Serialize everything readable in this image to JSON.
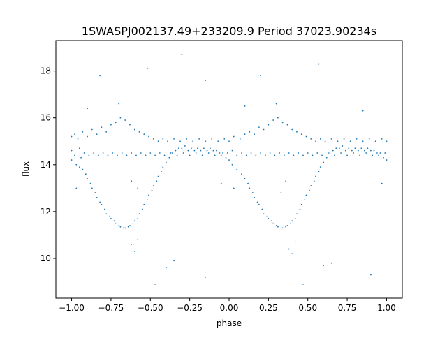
{
  "chart_data": {
    "type": "scatter",
    "title": "1SWASPJ002137.49+233209.9 Period 37023.90234s",
    "xlabel": "phase",
    "ylabel": "flux",
    "xlim": [
      -1.1,
      1.1
    ],
    "ylim": [
      8.3,
      19.3
    ],
    "x_ticks": [
      {
        "value": -1.0,
        "label": "−1.00"
      },
      {
        "value": -0.75,
        "label": "−0.75"
      },
      {
        "value": -0.5,
        "label": "−0.50"
      },
      {
        "value": -0.25,
        "label": "−0.25"
      },
      {
        "value": 0.0,
        "label": "0.00"
      },
      {
        "value": 0.25,
        "label": "0.25"
      },
      {
        "value": 0.5,
        "label": "0.50"
      },
      {
        "value": 0.75,
        "label": "0.75"
      },
      {
        "value": 1.0,
        "label": "1.00"
      }
    ],
    "y_ticks": [
      {
        "value": 10,
        "label": "10"
      },
      {
        "value": 12,
        "label": "12"
      },
      {
        "value": 14,
        "label": "14"
      },
      {
        "value": 16,
        "label": "16"
      },
      {
        "value": 18,
        "label": "18"
      }
    ],
    "grid": false,
    "legend": "none",
    "marker_color": "#1f77b4",
    "series": [
      {
        "description_values": "folded light curve, phase -1 to 1",
        "points": [
          [
            -1.0,
            15.2
          ],
          [
            -1.0,
            14.6
          ],
          [
            -1.0,
            14.2
          ],
          [
            -0.98,
            15.3
          ],
          [
            -0.98,
            14.4
          ],
          [
            -0.97,
            14.0
          ],
          [
            -0.96,
            15.1
          ],
          [
            -0.95,
            14.7
          ],
          [
            -0.95,
            13.9
          ],
          [
            -0.94,
            14.3
          ],
          [
            -0.93,
            15.4
          ],
          [
            -0.93,
            13.8
          ],
          [
            -0.92,
            14.5
          ],
          [
            -0.91,
            13.6
          ],
          [
            -0.9,
            15.2
          ],
          [
            -0.9,
            13.4
          ],
          [
            -0.89,
            14.4
          ],
          [
            -0.88,
            13.2
          ],
          [
            -0.87,
            15.5
          ],
          [
            -0.87,
            13.0
          ],
          [
            -0.86,
            14.5
          ],
          [
            -0.85,
            12.8
          ],
          [
            -0.84,
            15.3
          ],
          [
            -0.84,
            12.6
          ],
          [
            -0.83,
            14.4
          ],
          [
            -0.82,
            12.4
          ],
          [
            -0.81,
            15.6
          ],
          [
            -0.81,
            12.3
          ],
          [
            -0.8,
            14.5
          ],
          [
            -0.79,
            12.1
          ],
          [
            -0.78,
            15.4
          ],
          [
            -0.78,
            11.9
          ],
          [
            -0.77,
            14.4
          ],
          [
            -0.76,
            11.8
          ],
          [
            -0.75,
            15.7
          ],
          [
            -0.75,
            11.7
          ],
          [
            -0.74,
            14.5
          ],
          [
            -0.73,
            11.6
          ],
          [
            -0.72,
            15.8
          ],
          [
            -0.72,
            11.5
          ],
          [
            -0.71,
            14.4
          ],
          [
            -0.7,
            11.4
          ],
          [
            -0.69,
            16.0
          ],
          [
            -0.69,
            11.35
          ],
          [
            -0.68,
            14.5
          ],
          [
            -0.67,
            11.3
          ],
          [
            -0.66,
            15.9
          ],
          [
            -0.66,
            11.3
          ],
          [
            -0.65,
            14.4
          ],
          [
            -0.64,
            11.35
          ],
          [
            -0.63,
            15.7
          ],
          [
            -0.63,
            11.4
          ],
          [
            -0.62,
            14.5
          ],
          [
            -0.61,
            11.5
          ],
          [
            -0.6,
            15.5
          ],
          [
            -0.6,
            11.6
          ],
          [
            -0.59,
            14.4
          ],
          [
            -0.58,
            11.7
          ],
          [
            -0.57,
            15.4
          ],
          [
            -0.57,
            11.9
          ],
          [
            -0.56,
            14.5
          ],
          [
            -0.55,
            12.1
          ],
          [
            -0.54,
            15.3
          ],
          [
            -0.54,
            12.3
          ],
          [
            -0.53,
            14.4
          ],
          [
            -0.52,
            12.5
          ],
          [
            -0.51,
            15.2
          ],
          [
            -0.51,
            12.7
          ],
          [
            -0.5,
            14.5
          ],
          [
            -0.49,
            12.9
          ],
          [
            -0.48,
            15.1
          ],
          [
            -0.48,
            13.1
          ],
          [
            -0.47,
            14.4
          ],
          [
            -0.46,
            13.3
          ],
          [
            -0.45,
            15.0
          ],
          [
            -0.45,
            13.5
          ],
          [
            -0.44,
            14.5
          ],
          [
            -0.43,
            13.7
          ],
          [
            -0.42,
            15.1
          ],
          [
            -0.42,
            13.9
          ],
          [
            -0.41,
            14.4
          ],
          [
            -0.4,
            14.1
          ],
          [
            -0.39,
            15.0
          ],
          [
            -0.38,
            14.3
          ],
          [
            -0.37,
            14.5
          ],
          [
            -0.36,
            14.5
          ],
          [
            -0.35,
            15.1
          ],
          [
            -0.34,
            14.6
          ],
          [
            -0.33,
            14.4
          ],
          [
            -0.32,
            14.7
          ],
          [
            -0.31,
            15.0
          ],
          [
            -0.3,
            14.7
          ],
          [
            -0.29,
            14.5
          ],
          [
            -0.28,
            14.8
          ],
          [
            -0.27,
            15.1
          ],
          [
            -0.26,
            14.6
          ],
          [
            -0.25,
            14.4
          ],
          [
            -0.24,
            14.7
          ],
          [
            -0.23,
            15.0
          ],
          [
            -0.22,
            14.6
          ],
          [
            -0.21,
            14.5
          ],
          [
            -0.2,
            14.7
          ],
          [
            -0.19,
            15.1
          ],
          [
            -0.18,
            14.6
          ],
          [
            -0.17,
            14.4
          ],
          [
            -0.16,
            14.7
          ],
          [
            -0.15,
            15.0
          ],
          [
            -0.14,
            14.6
          ],
          [
            -0.13,
            14.5
          ],
          [
            -0.12,
            14.7
          ],
          [
            -0.11,
            15.1
          ],
          [
            -0.1,
            14.6
          ],
          [
            -0.09,
            14.4
          ],
          [
            -0.08,
            14.6
          ],
          [
            -0.07,
            15.0
          ],
          [
            -0.06,
            14.5
          ],
          [
            -0.05,
            14.4
          ],
          [
            -0.04,
            14.5
          ],
          [
            -0.03,
            15.1
          ],
          [
            -0.02,
            14.3
          ],
          [
            -0.01,
            14.5
          ],
          [
            0.0,
            14.2
          ],
          [
            0.0,
            15.0
          ],
          [
            0.02,
            14.6
          ],
          [
            0.02,
            14.0
          ],
          [
            0.03,
            15.2
          ],
          [
            0.05,
            14.4
          ],
          [
            0.05,
            13.8
          ],
          [
            0.07,
            15.1
          ],
          [
            0.08,
            14.5
          ],
          [
            0.08,
            13.6
          ],
          [
            0.1,
            15.3
          ],
          [
            0.1,
            13.4
          ],
          [
            0.11,
            14.4
          ],
          [
            0.12,
            13.2
          ],
          [
            0.13,
            15.4
          ],
          [
            0.13,
            13.0
          ],
          [
            0.14,
            14.5
          ],
          [
            0.15,
            12.8
          ],
          [
            0.16,
            15.3
          ],
          [
            0.16,
            12.6
          ],
          [
            0.17,
            14.4
          ],
          [
            0.18,
            12.4
          ],
          [
            0.19,
            15.6
          ],
          [
            0.19,
            12.3
          ],
          [
            0.2,
            14.5
          ],
          [
            0.21,
            12.1
          ],
          [
            0.22,
            15.5
          ],
          [
            0.22,
            11.9
          ],
          [
            0.23,
            14.4
          ],
          [
            0.24,
            11.8
          ],
          [
            0.25,
            15.7
          ],
          [
            0.25,
            11.7
          ],
          [
            0.26,
            14.5
          ],
          [
            0.27,
            11.6
          ],
          [
            0.28,
            15.9
          ],
          [
            0.28,
            11.5
          ],
          [
            0.29,
            14.4
          ],
          [
            0.3,
            11.4
          ],
          [
            0.31,
            16.0
          ],
          [
            0.31,
            11.35
          ],
          [
            0.32,
            14.5
          ],
          [
            0.33,
            11.3
          ],
          [
            0.34,
            15.8
          ],
          [
            0.34,
            11.3
          ],
          [
            0.35,
            14.4
          ],
          [
            0.36,
            11.35
          ],
          [
            0.37,
            15.7
          ],
          [
            0.37,
            11.4
          ],
          [
            0.38,
            14.5
          ],
          [
            0.39,
            11.5
          ],
          [
            0.4,
            15.5
          ],
          [
            0.4,
            11.6
          ],
          [
            0.41,
            14.4
          ],
          [
            0.42,
            11.7
          ],
          [
            0.43,
            15.4
          ],
          [
            0.43,
            11.9
          ],
          [
            0.44,
            14.5
          ],
          [
            0.45,
            12.1
          ],
          [
            0.46,
            15.3
          ],
          [
            0.46,
            12.3
          ],
          [
            0.47,
            14.4
          ],
          [
            0.48,
            12.5
          ],
          [
            0.49,
            15.2
          ],
          [
            0.49,
            12.7
          ],
          [
            0.5,
            14.5
          ],
          [
            0.51,
            12.9
          ],
          [
            0.52,
            15.1
          ],
          [
            0.52,
            13.1
          ],
          [
            0.53,
            14.4
          ],
          [
            0.54,
            13.3
          ],
          [
            0.55,
            15.0
          ],
          [
            0.55,
            13.5
          ],
          [
            0.56,
            14.5
          ],
          [
            0.57,
            13.7
          ],
          [
            0.58,
            15.1
          ],
          [
            0.58,
            13.9
          ],
          [
            0.59,
            14.4
          ],
          [
            0.6,
            14.1
          ],
          [
            0.61,
            15.0
          ],
          [
            0.62,
            14.3
          ],
          [
            0.63,
            14.5
          ],
          [
            0.64,
            14.5
          ],
          [
            0.65,
            15.1
          ],
          [
            0.66,
            14.6
          ],
          [
            0.67,
            14.4
          ],
          [
            0.68,
            14.7
          ],
          [
            0.69,
            15.0
          ],
          [
            0.7,
            14.7
          ],
          [
            0.71,
            14.5
          ],
          [
            0.72,
            14.8
          ],
          [
            0.73,
            15.1
          ],
          [
            0.74,
            14.6
          ],
          [
            0.75,
            14.4
          ],
          [
            0.76,
            14.7
          ],
          [
            0.77,
            15.0
          ],
          [
            0.78,
            14.6
          ],
          [
            0.79,
            14.5
          ],
          [
            0.8,
            14.7
          ],
          [
            0.81,
            15.1
          ],
          [
            0.82,
            14.6
          ],
          [
            0.83,
            14.4
          ],
          [
            0.84,
            14.7
          ],
          [
            0.85,
            15.0
          ],
          [
            0.86,
            14.6
          ],
          [
            0.87,
            14.5
          ],
          [
            0.88,
            14.7
          ],
          [
            0.89,
            15.1
          ],
          [
            0.9,
            14.6
          ],
          [
            0.91,
            14.4
          ],
          [
            0.92,
            14.6
          ],
          [
            0.93,
            15.0
          ],
          [
            0.94,
            14.5
          ],
          [
            0.95,
            14.4
          ],
          [
            0.96,
            14.5
          ],
          [
            0.97,
            15.1
          ],
          [
            0.98,
            14.3
          ],
          [
            0.99,
            14.5
          ],
          [
            1.0,
            14.2
          ],
          [
            1.0,
            15.0
          ],
          [
            -0.9,
            16.4
          ],
          [
            -0.7,
            16.6
          ],
          [
            -0.62,
            10.6
          ],
          [
            -0.6,
            10.3
          ],
          [
            -0.58,
            10.8
          ],
          [
            -0.4,
            9.6
          ],
          [
            -0.35,
            9.9
          ],
          [
            -0.15,
            17.6
          ],
          [
            -0.05,
            13.2
          ],
          [
            0.1,
            16.5
          ],
          [
            0.3,
            16.6
          ],
          [
            0.38,
            10.4
          ],
          [
            0.4,
            10.2
          ],
          [
            0.42,
            10.7
          ],
          [
            0.6,
            9.7
          ],
          [
            0.65,
            9.8
          ],
          [
            0.85,
            16.3
          ],
          [
            -0.82,
            17.8
          ],
          [
            0.2,
            17.8
          ],
          [
            -0.3,
            18.7
          ],
          [
            0.57,
            18.3
          ],
          [
            -0.52,
            18.1
          ],
          [
            0.47,
            8.9
          ],
          [
            -0.47,
            8.9
          ],
          [
            -0.15,
            9.2
          ],
          [
            0.9,
            9.3
          ],
          [
            -0.97,
            13.0
          ],
          [
            0.03,
            13.0
          ],
          [
            0.97,
            13.2
          ],
          [
            -0.62,
            13.3
          ],
          [
            0.36,
            13.3
          ],
          [
            -0.58,
            13.0
          ],
          [
            0.33,
            12.8
          ]
        ]
      }
    ]
  }
}
